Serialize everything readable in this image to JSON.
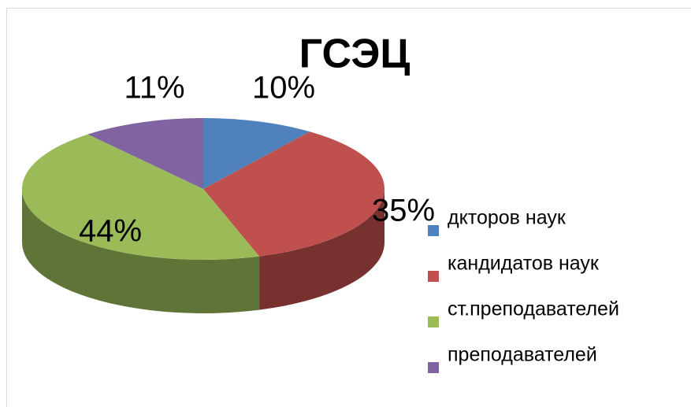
{
  "chart_data": {
    "type": "pie",
    "title": "ГСЭЦ",
    "categories": [
      "дкторов наук",
      "кандидатов наук",
      "ст.преподавателей",
      "преподавателей"
    ],
    "values": [
      10,
      35,
      44,
      11
    ],
    "value_labels": [
      "10%",
      "35%",
      "44%",
      "11%"
    ],
    "colors": [
      "#4f81bd",
      "#c0504d",
      "#9bbb59",
      "#8064a2"
    ],
    "legend": "right"
  }
}
